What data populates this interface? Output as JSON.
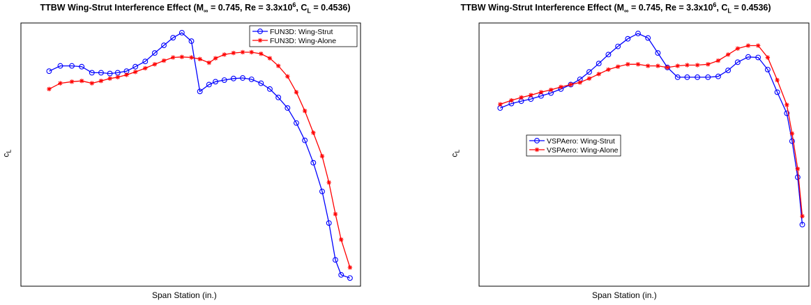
{
  "charts": [
    {
      "id": "left",
      "title": {
        "prefix": "TTBW Wing-Strut Interference Effect (M",
        "mach_sub": "∞",
        "mid1": " = 0.745, Re = 3.3x10",
        "re_exp": "6",
        "mid2": ", C",
        "cl_sub": "L",
        "suffix": " = 0.4536)"
      },
      "xlabel": "Span Station (in.)",
      "ylabel_main": "c",
      "ylabel_sub": "L"
    },
    {
      "id": "right",
      "title": {
        "prefix": "TTBW Wing-Strut Interference Effect (M",
        "mach_sub": "∞",
        "mid1": " = 0.745, Re = 3.3x10",
        "re_exp": "6",
        "mid2": ", C",
        "cl_sub": "L",
        "suffix": " = 0.4536)"
      },
      "xlabel": "Span Station (in.)",
      "ylabel_main": "c",
      "ylabel_sub": "L"
    }
  ],
  "chart_data": [
    {
      "type": "line",
      "title": "TTBW Wing-Strut Interference Effect (M∞ = 0.745, Re = 3.3x10^6, CL = 0.4536)",
      "xlabel": "Span Station (in.)",
      "ylabel": "cL",
      "xlim": [
        0,
        100
      ],
      "ylim": [
        0,
        100
      ],
      "ticks_shown": false,
      "grid": false,
      "legend_position": "top-right",
      "series": [
        {
          "name": "FUN3D: Wing-Strut",
          "color": "#0000ff",
          "marker": "circle",
          "x": [
            8.3,
            11.6,
            15.0,
            17.9,
            20.9,
            23.6,
            26.2,
            28.5,
            31.1,
            33.7,
            36.6,
            39.4,
            42.1,
            44.8,
            47.4,
            50.2,
            52.7,
            55.4,
            57.3,
            59.9,
            62.6,
            65.3,
            67.9,
            70.7,
            73.3,
            75.8,
            78.5,
            81.1,
            83.6,
            86.1,
            88.7,
            90.7,
            92.6,
            94.3,
            96.9
          ],
          "y": [
            81.7,
            83.7,
            83.7,
            83.4,
            81.1,
            81.1,
            80.8,
            81.1,
            81.7,
            83.4,
            85.4,
            88.6,
            91.5,
            94.4,
            96.3,
            93.1,
            74.0,
            76.6,
            77.7,
            78.3,
            78.9,
            79.1,
            78.6,
            77.1,
            74.9,
            71.7,
            67.7,
            62.0,
            55.4,
            46.9,
            36.0,
            24.0,
            10.0,
            4.3,
            3.1
          ]
        },
        {
          "name": "FUN3D: Wing-Alone",
          "color": "#ff0000",
          "marker": "star",
          "x": [
            8.3,
            11.6,
            15.0,
            17.9,
            20.9,
            23.6,
            26.2,
            28.5,
            31.1,
            33.7,
            36.6,
            39.4,
            42.1,
            44.8,
            47.4,
            50.2,
            52.7,
            55.4,
            57.3,
            59.9,
            62.6,
            65.3,
            67.9,
            70.7,
            73.3,
            75.8,
            78.5,
            81.1,
            83.6,
            86.1,
            88.7,
            90.7,
            92.6,
            94.3,
            96.9
          ],
          "y": [
            74.9,
            77.1,
            77.7,
            78.0,
            77.1,
            78.0,
            78.9,
            79.4,
            80.3,
            81.4,
            82.8,
            84.3,
            85.7,
            86.9,
            87.1,
            86.9,
            86.3,
            84.9,
            86.6,
            88.0,
            88.6,
            88.9,
            88.9,
            88.3,
            86.6,
            83.7,
            79.7,
            73.7,
            66.6,
            58.3,
            49.4,
            39.4,
            27.4,
            17.7,
            7.1
          ]
        }
      ]
    },
    {
      "type": "line",
      "title": "TTBW Wing-Strut Interference Effect (M∞ = 0.745, Re = 3.3x10^6, CL = 0.4536)",
      "xlabel": "Span Station (in.)",
      "ylabel": "cL",
      "xlim": [
        0,
        100
      ],
      "ylim": [
        0,
        100
      ],
      "ticks_shown": false,
      "grid": false,
      "legend_position": "center-left",
      "series": [
        {
          "name": "VSPAero: Wing-Strut",
          "color": "#0000ff",
          "marker": "circle",
          "x": [
            6.4,
            9.8,
            12.8,
            15.7,
            18.8,
            21.8,
            24.8,
            27.8,
            30.6,
            33.4,
            36.3,
            39.2,
            42.1,
            45.1,
            48.2,
            51.2,
            54.2,
            57.1,
            60.2,
            63.1,
            66.2,
            69.4,
            72.5,
            75.5,
            78.4,
            81.6,
            84.6,
            87.5,
            90.4,
            93.3,
            94.9,
            96.6,
            98.0
          ],
          "y": [
            67.7,
            69.4,
            70.3,
            71.1,
            72.3,
            73.4,
            74.9,
            76.6,
            78.6,
            81.4,
            84.6,
            88.0,
            91.1,
            94.0,
            96.0,
            94.3,
            88.6,
            83.1,
            79.4,
            79.4,
            79.4,
            79.4,
            79.7,
            82.0,
            85.1,
            87.1,
            86.9,
            82.3,
            73.7,
            65.7,
            55.1,
            41.4,
            23.4
          ]
        },
        {
          "name": "VSPAero: Wing-Alone",
          "color": "#ff0000",
          "marker": "star",
          "x": [
            6.4,
            9.8,
            12.8,
            15.7,
            18.8,
            21.8,
            24.8,
            27.8,
            30.6,
            33.4,
            36.3,
            39.2,
            42.1,
            45.1,
            48.2,
            51.2,
            54.2,
            57.1,
            60.2,
            63.1,
            66.2,
            69.4,
            72.5,
            75.5,
            78.4,
            81.6,
            84.6,
            87.5,
            90.4,
            93.3,
            94.9,
            96.6,
            98.0
          ],
          "y": [
            69.1,
            70.6,
            71.7,
            72.6,
            73.7,
            74.6,
            75.7,
            76.6,
            77.4,
            78.9,
            80.6,
            82.3,
            83.4,
            84.3,
            84.3,
            83.7,
            83.7,
            83.1,
            83.7,
            84.0,
            84.0,
            84.3,
            85.7,
            88.0,
            90.3,
            91.4,
            91.4,
            86.9,
            78.3,
            68.9,
            58.0,
            44.6,
            26.6
          ]
        }
      ]
    }
  ]
}
